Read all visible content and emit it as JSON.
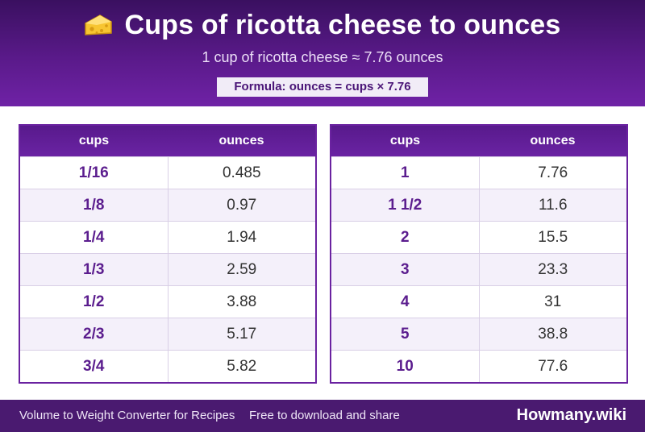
{
  "header": {
    "title": "Cups of ricotta cheese to ounces",
    "icon": "cheese-icon",
    "subtitle": "1 cup of ricotta cheese ≈ 7.76 ounces",
    "formula": "Formula: ounces = cups × 7.76"
  },
  "tables": [
    {
      "col_cups": "cups",
      "col_oz": "ounces",
      "rows": [
        {
          "cups": "1/16",
          "oz": "0.485"
        },
        {
          "cups": "1/8",
          "oz": "0.97"
        },
        {
          "cups": "1/4",
          "oz": "1.94"
        },
        {
          "cups": "1/3",
          "oz": "2.59"
        },
        {
          "cups": "1/2",
          "oz": "3.88"
        },
        {
          "cups": "2/3",
          "oz": "5.17"
        },
        {
          "cups": "3/4",
          "oz": "5.82"
        }
      ]
    },
    {
      "col_cups": "cups",
      "col_oz": "ounces",
      "rows": [
        {
          "cups": "1",
          "oz": "7.76"
        },
        {
          "cups": "1 1/2",
          "oz": "11.6"
        },
        {
          "cups": "2",
          "oz": "15.5"
        },
        {
          "cups": "3",
          "oz": "23.3"
        },
        {
          "cups": "4",
          "oz": "31"
        },
        {
          "cups": "5",
          "oz": "38.8"
        },
        {
          "cups": "10",
          "oz": "77.6"
        }
      ]
    }
  ],
  "footer": {
    "left": "Volume to Weight Converter for Recipes",
    "middle": "Free to download and share",
    "brand": "Howmany.wiki"
  },
  "colors": {
    "header": "#5a1a8a",
    "accent": "#6a22a0",
    "footer": "#4a1a70"
  }
}
